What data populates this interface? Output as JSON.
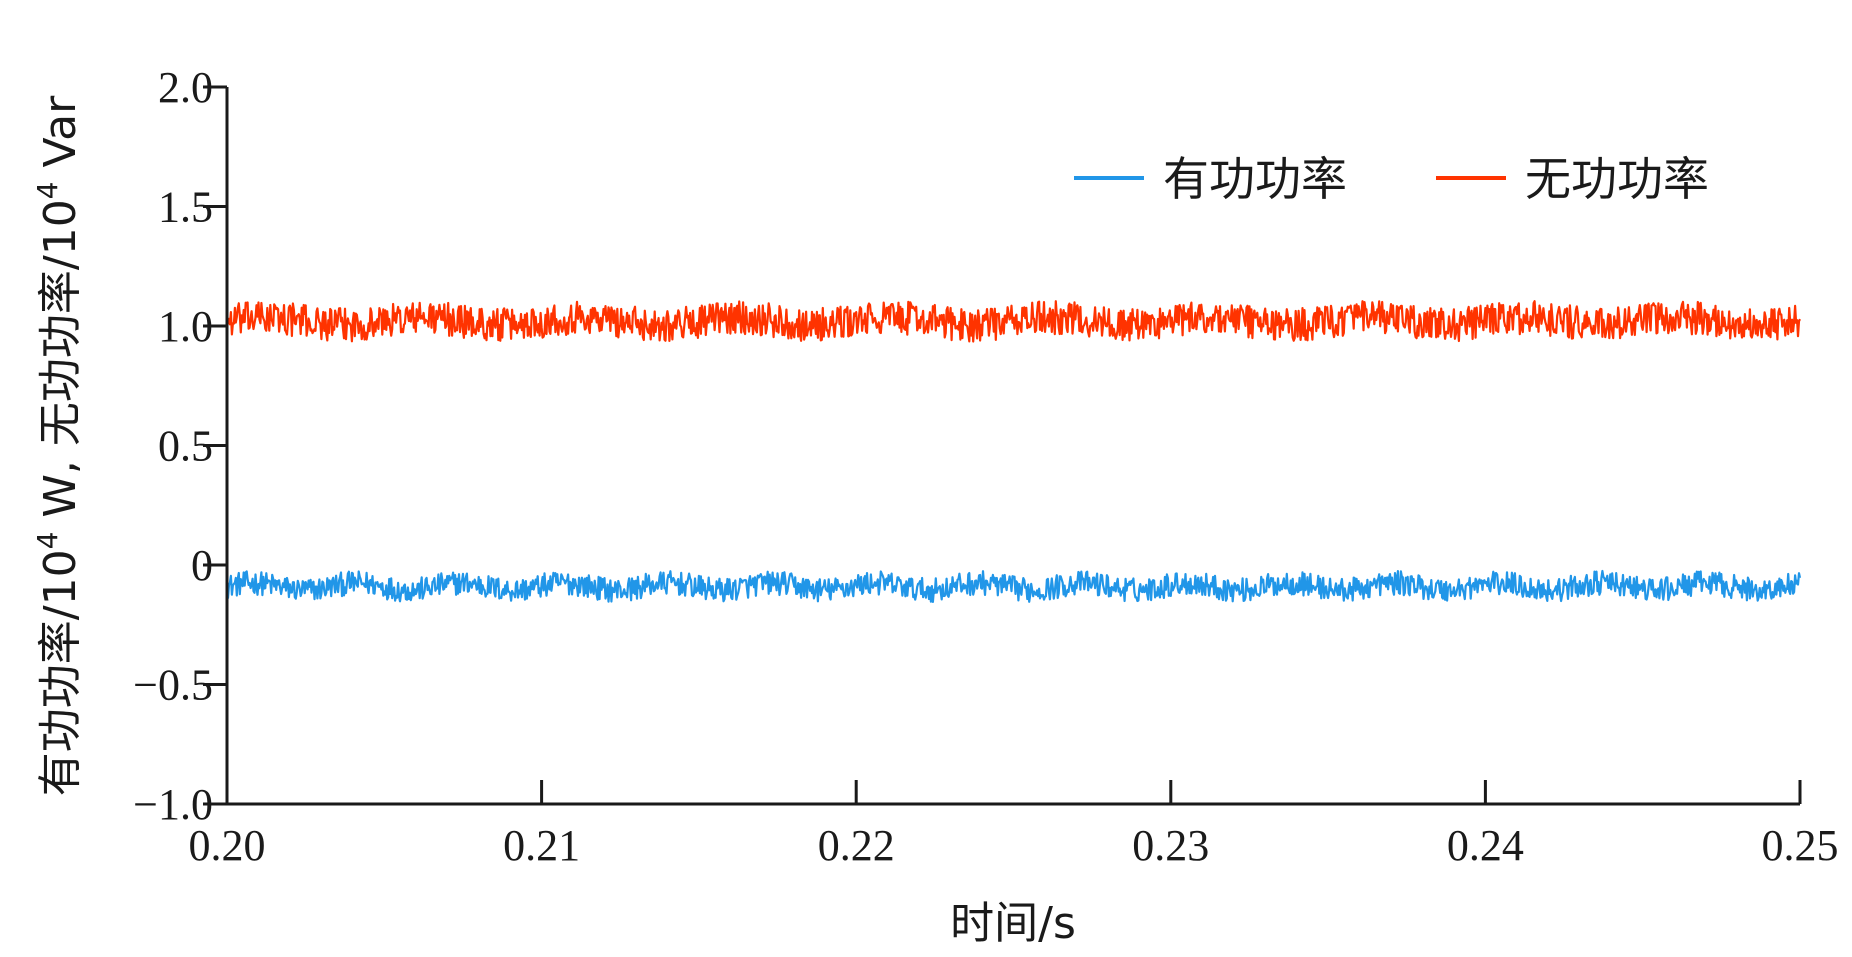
{
  "chart_data": {
    "type": "line",
    "title": "",
    "xlabel": "时间/s",
    "ylabel_parts": {
      "p1": "有功功率/10",
      "p1_sup": "4",
      "p2": " W, 无功功率/10",
      "p2_sup": "4",
      "p3": " Var"
    },
    "xlim": [
      0.2,
      0.25
    ],
    "ylim": [
      -1.0,
      2.0
    ],
    "xticks": [
      "0.20",
      "0.21",
      "0.22",
      "0.23",
      "0.24",
      "0.25"
    ],
    "xtick_values": [
      0.2,
      0.21,
      0.22,
      0.23,
      0.24,
      0.25
    ],
    "yticks": [
      "2.0",
      "1.5",
      "1.0",
      "0.5",
      "0",
      "−0.5",
      "−1.0"
    ],
    "ytick_values": [
      2.0,
      1.5,
      1.0,
      0.5,
      0.0,
      -0.5,
      -1.0
    ],
    "grid": false,
    "legend_position": "top-right",
    "series": [
      {
        "name": "有功功率",
        "color": "#2196e8",
        "mean": -0.09,
        "noise_amplitude": 0.05,
        "slow_wave_amplitude": 0.015,
        "slow_wave_period": 0.0033
      },
      {
        "name": "无功功率",
        "color": "#ff3300",
        "mean": 1.02,
        "noise_amplitude": 0.07,
        "slow_wave_amplitude": 0.015,
        "slow_wave_period": 0.005
      }
    ]
  }
}
